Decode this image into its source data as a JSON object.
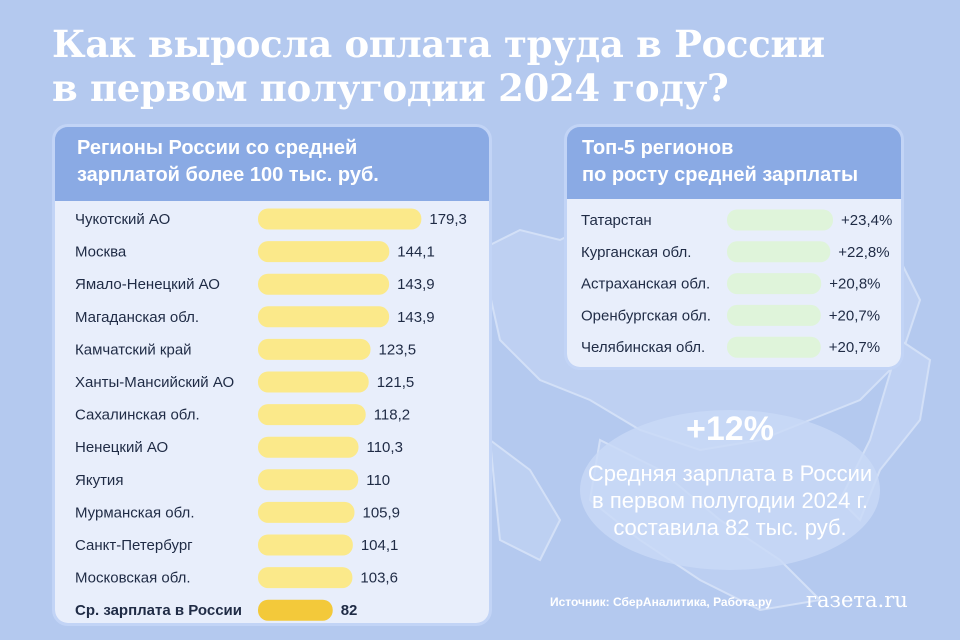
{
  "title_line1": "Как выросла оплата труда в России",
  "title_line2": "в первом полугодии 2024 году?",
  "left_panel": {
    "header_line1": "Регионы России со средней",
    "header_line2": "зарплатой более 100 тыс. руб."
  },
  "right_panel": {
    "header_line1": "Топ-5 регионов",
    "header_line2": "по росту средней зарплаты"
  },
  "summary": {
    "percent": "+12%",
    "line1": "Средняя зарплата в России",
    "line2": "в первом полугодии 2024 г.",
    "line3": "составила 82 тыс. руб."
  },
  "source": "Источник: СберАналитика, Работа.ру",
  "logo": "газета.ru",
  "colors": {
    "bar_yellow": "#fbe98a",
    "bar_average": "#f3c93a",
    "bar_green": "#dff4da",
    "header_blue": "#8aaae4"
  },
  "chart_data": [
    {
      "type": "bar",
      "orientation": "horizontal",
      "categories": [
        "Чукотский АО",
        "Москва",
        "Ямало-Ненецкий АО",
        "Магаданская обл.",
        "Камчатский край",
        "Ханты-Мансийский АО",
        "Сахалинская обл.",
        "Ненецкий АО",
        "Якутия",
        "Мурманская обл.",
        "Санкт-Петербург",
        "Московская обл.",
        "Ср. зарплата в России"
      ],
      "values": [
        179.3,
        144.1,
        143.9,
        143.9,
        123.5,
        121.5,
        118.2,
        110.3,
        110,
        105.9,
        104.1,
        103.6,
        82
      ],
      "value_labels": [
        "179,3",
        "144,1",
        "143,9",
        "143,9",
        "123,5",
        "121,5",
        "118,2",
        "110,3",
        "110",
        "105,9",
        "104,1",
        "103,6",
        "82"
      ],
      "highlight_category": "Ср. зарплата в России"
    },
    {
      "type": "bar",
      "orientation": "horizontal",
      "categories": [
        "Татарстан",
        "Курганская обл.",
        "Астраханская обл.",
        "Оренбургская обл.",
        "Челябинская обл."
      ],
      "values": [
        23.4,
        22.8,
        20.8,
        20.7,
        20.7
      ],
      "value_labels": [
        "+23,4%",
        "+22,8%",
        "+20,8%",
        "+20,7%",
        "+20,7%"
      ]
    }
  ]
}
